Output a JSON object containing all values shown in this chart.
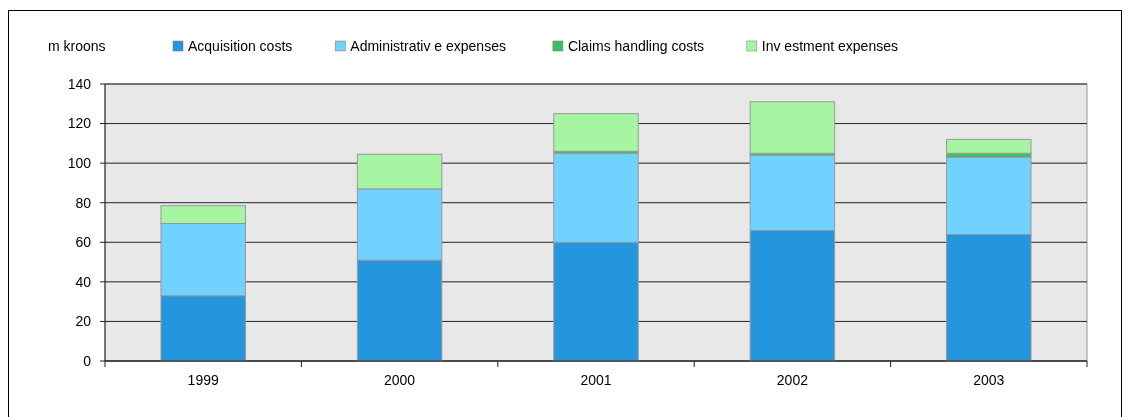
{
  "chart_data": {
    "type": "bar",
    "stacked": true,
    "ylabel": "m kroons",
    "categories": [
      "1999",
      "2000",
      "2001",
      "2002",
      "2003"
    ],
    "series": [
      {
        "name": "Acquisition costs",
        "color": "#2396dd",
        "values": [
          33,
          51,
          60,
          66,
          64
        ]
      },
      {
        "name": "Administrativ e expenses",
        "color": "#72d2ff",
        "values": [
          36.5,
          36,
          45,
          38,
          39
        ]
      },
      {
        "name": "Claims handling costs",
        "color": "#3cbf66",
        "values": [
          null,
          null,
          1,
          1,
          2
        ]
      },
      {
        "name": "Inv estment expenses",
        "color": "#a5f5a3",
        "values": [
          9,
          17.5,
          19,
          26,
          7
        ]
      }
    ],
    "ylim": [
      0,
      140
    ],
    "yticks": [
      0,
      20,
      40,
      60,
      80,
      100,
      120,
      140
    ],
    "grid": "y",
    "legend": "top"
  }
}
